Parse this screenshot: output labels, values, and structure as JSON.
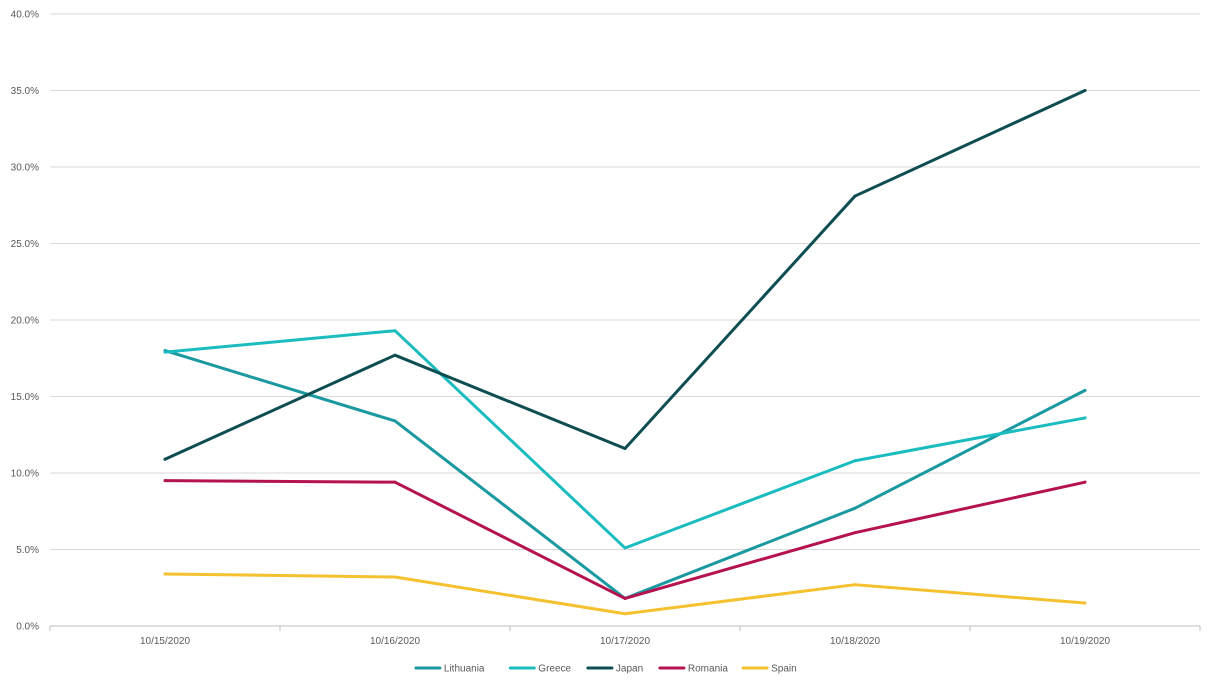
{
  "chart_data": {
    "type": "line",
    "title": "",
    "xlabel": "",
    "ylabel": "",
    "categories": [
      "10/15/2020",
      "10/16/2020",
      "10/17/2020",
      "10/18/2020",
      "10/19/2020"
    ],
    "ylim": [
      0,
      40
    ],
    "yticks": [
      0,
      5,
      10,
      15,
      20,
      25,
      30,
      35,
      40
    ],
    "ytick_labels": [
      "0.0%",
      "5.0%",
      "10.0%",
      "15.0%",
      "20.0%",
      "25.0%",
      "30.0%",
      "35.0%",
      "40.0%"
    ],
    "y_unit": "%",
    "grid": true,
    "legend_position": "bottom",
    "series": [
      {
        "name": "Lithuania",
        "color": "#1a9aa0",
        "values": [
          18.0,
          13.4,
          1.8,
          7.7,
          15.4
        ]
      },
      {
        "name": "Greece",
        "color": "#1bbcbf",
        "values": [
          17.9,
          19.3,
          5.1,
          10.8,
          13.6
        ]
      },
      {
        "name": "Japan",
        "color": "#0e4d52",
        "values": [
          10.9,
          17.7,
          11.6,
          28.1,
          35.0
        ]
      },
      {
        "name": "Romania",
        "color": "#b5134f",
        "values": [
          9.5,
          9.4,
          1.8,
          6.1,
          9.4
        ]
      },
      {
        "name": "Spain",
        "color": "#f5c12e",
        "values": [
          3.4,
          3.2,
          0.8,
          2.7,
          1.5
        ]
      }
    ]
  }
}
